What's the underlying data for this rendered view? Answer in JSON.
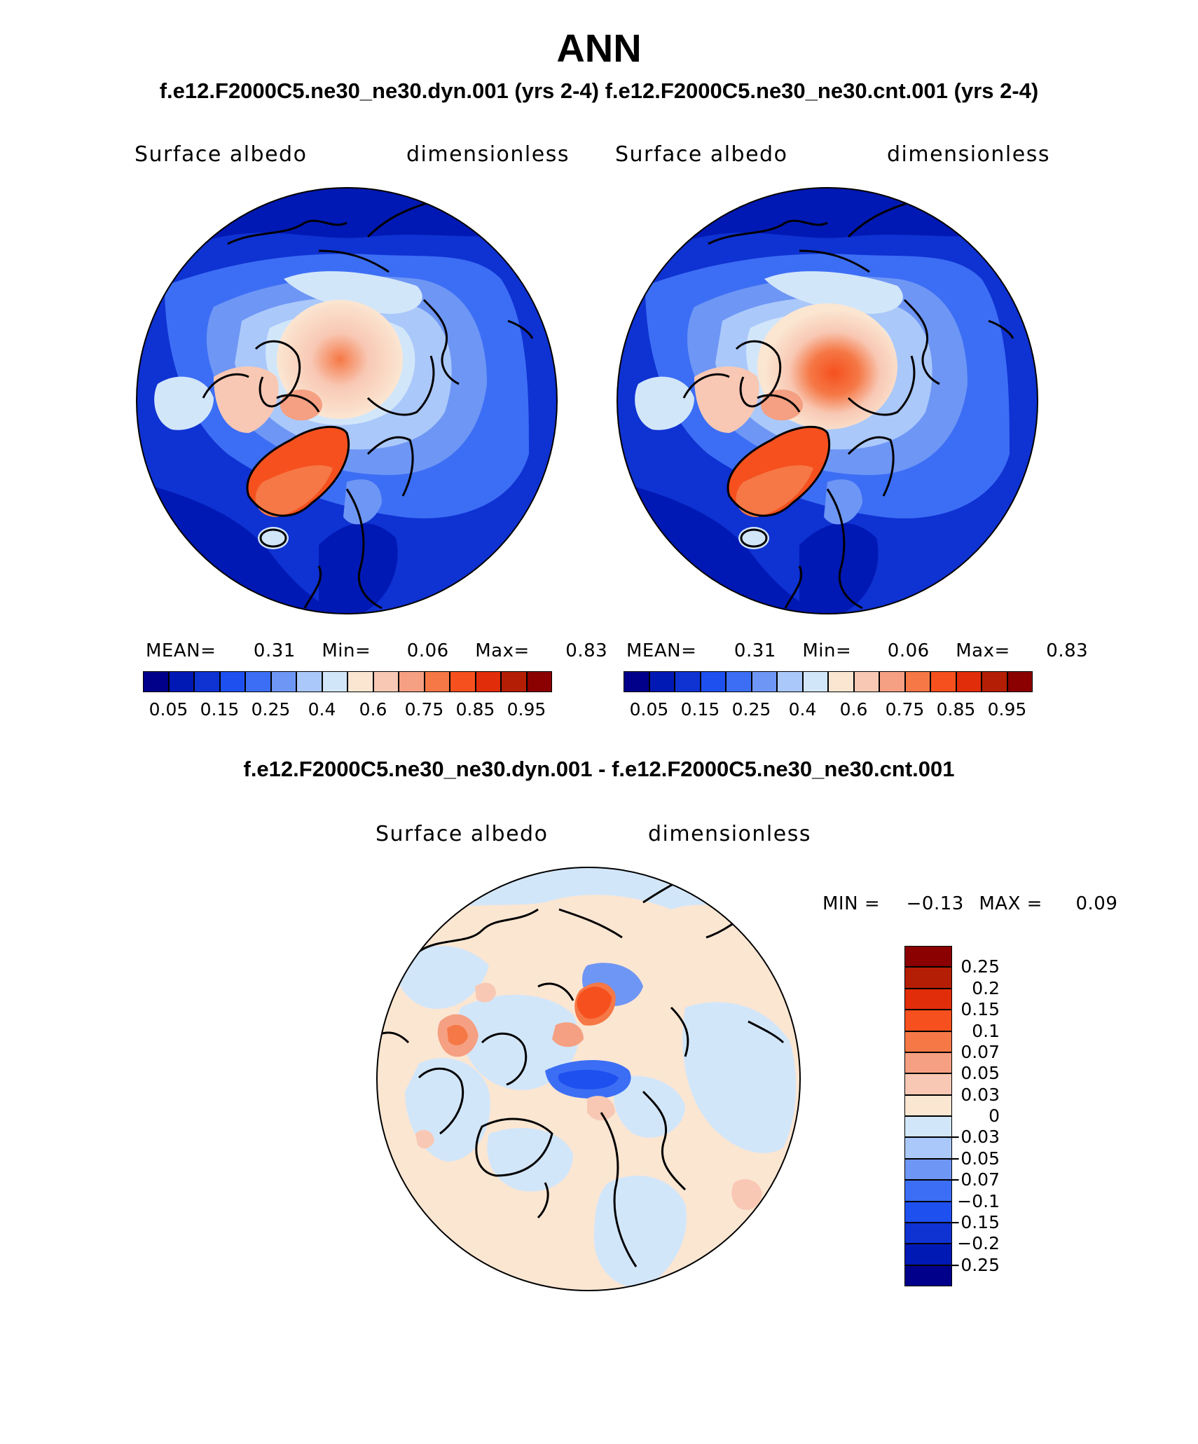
{
  "header": {
    "title": "ANN",
    "subtitle": "f.e12.F2000C5.ne30_ne30.dyn.001 (yrs 2-4)  f.e12.F2000C5.ne30_ne30.cnt.001 (yrs 2-4)"
  },
  "panels": [
    {
      "variable": "Surface albedo",
      "units": "dimensionless",
      "stats": {
        "mean_label": "MEAN=",
        "mean": "0.31",
        "min_label": "Min=",
        "min": "0.06",
        "max_label": "Max=",
        "max": "0.83"
      }
    },
    {
      "variable": "Surface albedo",
      "units": "dimensionless",
      "stats": {
        "mean_label": "MEAN=",
        "mean": "0.31",
        "min_label": "Min=",
        "min": "0.06",
        "max_label": "Max=",
        "max": "0.83"
      }
    }
  ],
  "colorbar_top": {
    "colors": [
      "#00008a",
      "#0019b4",
      "#0f32d2",
      "#1e50f0",
      "#3c6ef5",
      "#6e96f5",
      "#aac8fa",
      "#d2e6fa",
      "#fbe6d2",
      "#f8c8b4",
      "#f5a082",
      "#f57846",
      "#f5501e",
      "#e12d0a",
      "#b41e05",
      "#8b0000"
    ],
    "labels": [
      "0.05",
      "0.15",
      "0.25",
      "0.4",
      "0.6",
      "0.75",
      "0.85",
      "0.95"
    ]
  },
  "difference": {
    "title": "f.e12.F2000C5.ne30_ne30.dyn.001 - f.e12.F2000C5.ne30_ne30.cnt.001",
    "variable": "Surface albedo",
    "units": "dimensionless",
    "stats": {
      "min_label": "MIN =",
      "min": "−0.13",
      "max_label": "MAX =",
      "max": "0.09"
    },
    "colorbar": {
      "colors": [
        "#8b0000",
        "#b41e05",
        "#e12d0a",
        "#f5501e",
        "#f57846",
        "#f5a082",
        "#f8c8b4",
        "#fbe6d2",
        "#d2e6fa",
        "#aac8fa",
        "#6e96f5",
        "#3c6ef5",
        "#1e50f0",
        "#0f32d2",
        "#0019b4",
        "#00008a"
      ],
      "labels": [
        "0.25",
        "0.2",
        "0.15",
        "0.1",
        "0.07",
        "0.05",
        "0.03",
        "0",
        "−0.03",
        "−0.05",
        "−0.07",
        "−0.1",
        "−0.15",
        "−0.2",
        "−0.25"
      ]
    }
  }
}
